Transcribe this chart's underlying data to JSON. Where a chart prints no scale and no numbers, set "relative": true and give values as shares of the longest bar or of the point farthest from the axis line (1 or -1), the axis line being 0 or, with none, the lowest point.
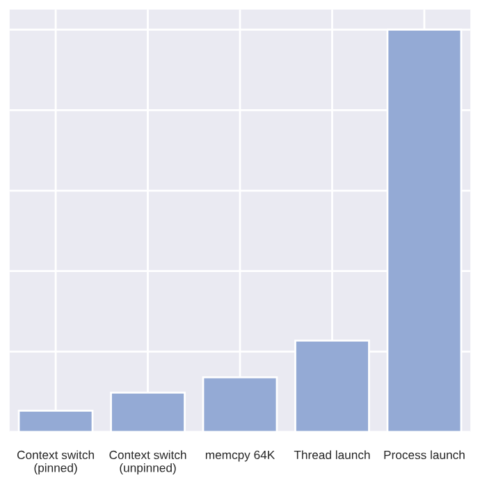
{
  "chart_data": {
    "type": "bar",
    "relative": true,
    "categories": [
      "Context switch\n(pinned)",
      "Context switch\n(unpinned)",
      "memcpy 64K",
      "Thread launch",
      "Process launch"
    ],
    "values": [
      0.053,
      0.098,
      0.136,
      0.227,
      1.0
    ],
    "color": "#94aad5",
    "grid": true
  }
}
